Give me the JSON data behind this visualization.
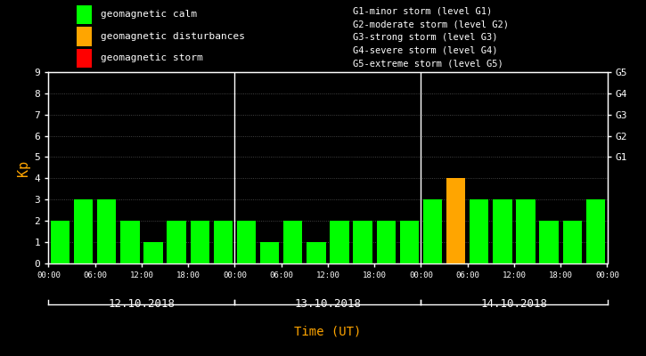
{
  "background_color": "#000000",
  "plot_bg_color": "#000000",
  "bar_data": {
    "day1": [
      2,
      3,
      3,
      2,
      1,
      2,
      2,
      2
    ],
    "day2": [
      2,
      1,
      2,
      1,
      2,
      2,
      2,
      2
    ],
    "day3": [
      3,
      4,
      3,
      3,
      3,
      2,
      2,
      3
    ]
  },
  "bar_colors": {
    "day1": [
      "#00ff00",
      "#00ff00",
      "#00ff00",
      "#00ff00",
      "#00ff00",
      "#00ff00",
      "#00ff00",
      "#00ff00"
    ],
    "day2": [
      "#00ff00",
      "#00ff00",
      "#00ff00",
      "#00ff00",
      "#00ff00",
      "#00ff00",
      "#00ff00",
      "#00ff00"
    ],
    "day3": [
      "#00ff00",
      "#ffa500",
      "#00ff00",
      "#00ff00",
      "#00ff00",
      "#00ff00",
      "#00ff00",
      "#00ff00"
    ]
  },
  "day_labels": [
    "12.10.2018",
    "13.10.2018",
    "14.10.2018"
  ],
  "x_tick_labels": [
    "00:00",
    "06:00",
    "12:00",
    "18:00",
    "00:00",
    "06:00",
    "12:00",
    "18:00",
    "00:00",
    "06:00",
    "12:00",
    "18:00",
    "00:00"
  ],
  "ylabel": "Kp",
  "xlabel": "Time (UT)",
  "ylim": [
    0,
    9
  ],
  "yticks": [
    0,
    1,
    2,
    3,
    4,
    5,
    6,
    7,
    8,
    9
  ],
  "right_yticks": [
    5,
    6,
    7,
    8,
    9
  ],
  "right_ytick_labels": [
    "G1",
    "G2",
    "G3",
    "G4",
    "G5"
  ],
  "legend_items": [
    {
      "label": "geomagnetic calm",
      "color": "#00ff00"
    },
    {
      "label": "geomagnetic disturbances",
      "color": "#ffa500"
    },
    {
      "label": "geomagnetic storm",
      "color": "#ff0000"
    }
  ],
  "legend_text_color": "#ffffff",
  "right_legend": [
    "G1-minor storm (level G1)",
    "G2-moderate storm (level G2)",
    "G3-strong storm (level G3)",
    "G4-severe storm (level G4)",
    "G5-extreme storm (level G5)"
  ],
  "axis_color": "#ffffff",
  "tick_color": "#ffffff",
  "label_color_y": "#ffa500",
  "label_color_x": "#ffa500",
  "font_family": "monospace",
  "bar_width": 0.82,
  "day_divider_color": "#ffffff",
  "grid_dot_color": "#555555"
}
